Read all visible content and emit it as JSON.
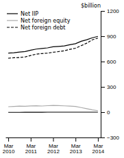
{
  "chart_data": {
    "type": "line",
    "ylabel": "$billion",
    "categories": [
      "Mar 2010",
      null,
      null,
      null,
      "Mar 2011",
      null,
      null,
      null,
      "Mar 2012",
      null,
      null,
      null,
      "Mar 2013",
      null,
      null,
      null,
      "Mar 2014"
    ],
    "series": [
      {
        "name": "Net IIP",
        "color": "#000000",
        "line_style": "solid",
        "values": [
          700,
          705,
          712,
          718,
          735,
          748,
          755,
          762,
          775,
          780,
          786,
          800,
          812,
          840,
          858,
          882,
          898
        ]
      },
      {
        "name": "Net foreign equity",
        "color": "#aaaaaa",
        "line_style": "solid",
        "values": [
          65,
          68,
          72,
          70,
          74,
          76,
          73,
          77,
          80,
          78,
          75,
          72,
          68,
          55,
          42,
          28,
          18
        ]
      },
      {
        "name": "Net foreign debt",
        "color": "#000000",
        "line_style": "dashed",
        "values": [
          640,
          645,
          648,
          655,
          672,
          688,
          695,
          700,
          710,
          718,
          728,
          745,
          758,
          788,
          818,
          858,
          878
        ]
      },
      {
        "color": "#000000",
        "line_style": "solid",
        "values": [
          -2,
          -2,
          -2,
          -1,
          -1,
          -1,
          -1,
          0,
          0,
          0,
          0,
          0,
          0,
          0,
          0,
          0,
          0
        ]
      }
    ],
    "ylim": [
      -300,
      1200
    ],
    "yticks": [
      {
        "value": -300,
        "label": "−300"
      },
      0,
      300,
      600,
      900,
      1200
    ],
    "grid": false,
    "legend": "upper left"
  }
}
